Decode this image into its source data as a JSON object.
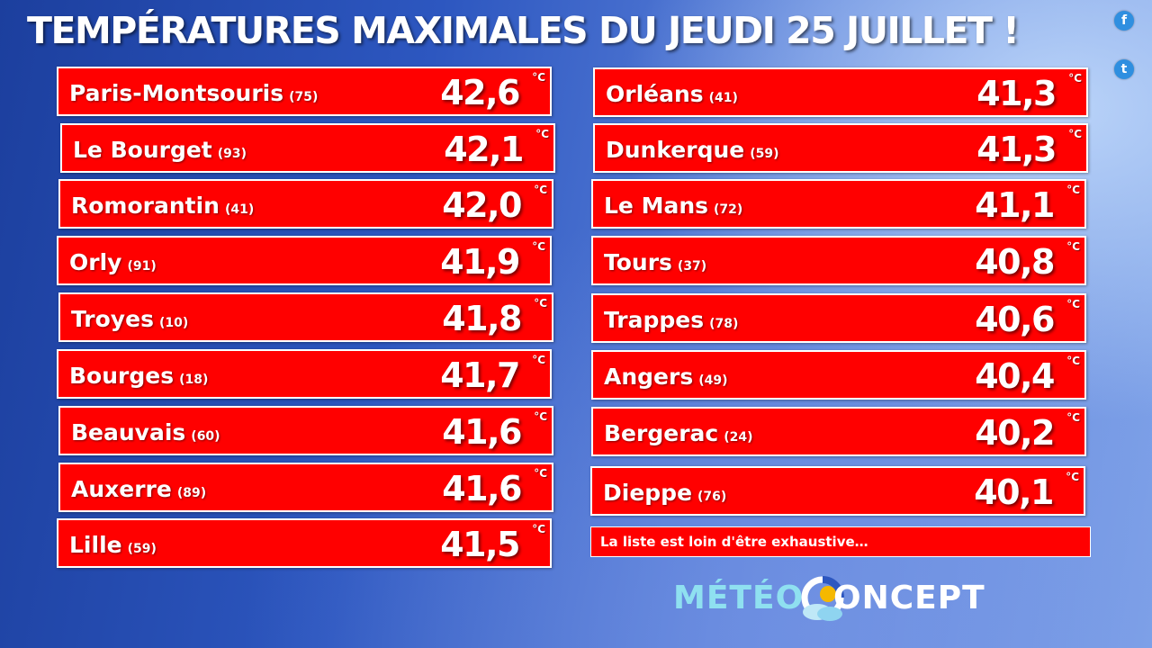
{
  "title": "TEMPÉRATURES MAXIMALES DU JEUDI 25 JUILLET !",
  "unit": "°C",
  "social": [
    {
      "icon": "facebook-icon",
      "glyph": "f"
    },
    {
      "icon": "twitter-icon",
      "glyph": "t"
    }
  ],
  "left": [
    {
      "city": "Paris-Montsouris",
      "dept": "(75)",
      "temp": "42,6"
    },
    {
      "city": "Le Bourget",
      "dept": "(93)",
      "temp": "42,1"
    },
    {
      "city": "Romorantin",
      "dept": "(41)",
      "temp": "42,0"
    },
    {
      "city": "Orly",
      "dept": "(91)",
      "temp": "41,9"
    },
    {
      "city": "Troyes",
      "dept": "(10)",
      "temp": "41,8"
    },
    {
      "city": "Bourges",
      "dept": "(18)",
      "temp": "41,7"
    },
    {
      "city": "Beauvais",
      "dept": "(60)",
      "temp": "41,6"
    },
    {
      "city": "Auxerre",
      "dept": "(89)",
      "temp": "41,6"
    },
    {
      "city": "Lille",
      "dept": "(59)",
      "temp": "41,5"
    }
  ],
  "right": [
    {
      "city": "Orléans",
      "dept": "(41)",
      "temp": "41,3"
    },
    {
      "city": "Dunkerque",
      "dept": "(59)",
      "temp": "41,3"
    },
    {
      "city": "Le Mans",
      "dept": "(72)",
      "temp": "41,1"
    },
    {
      "city": "Tours",
      "dept": "(37)",
      "temp": "40,8"
    },
    {
      "city": "Trappes",
      "dept": "(78)",
      "temp": "40,6"
    },
    {
      "city": "Angers",
      "dept": "(49)",
      "temp": "40,4"
    },
    {
      "city": "Bergerac",
      "dept": "(24)",
      "temp": "40,2"
    },
    {
      "city": "Dieppe",
      "dept": "(76)",
      "temp": "40,1"
    }
  ],
  "note": "La liste est loin d'être exhaustive…",
  "logo": {
    "part1": "MÉTÉO",
    "part2": "ONCEPT"
  },
  "colors": {
    "row_bg": "#ff0000",
    "text": "#ffffff",
    "logo_accent": "#8fe0f0"
  }
}
